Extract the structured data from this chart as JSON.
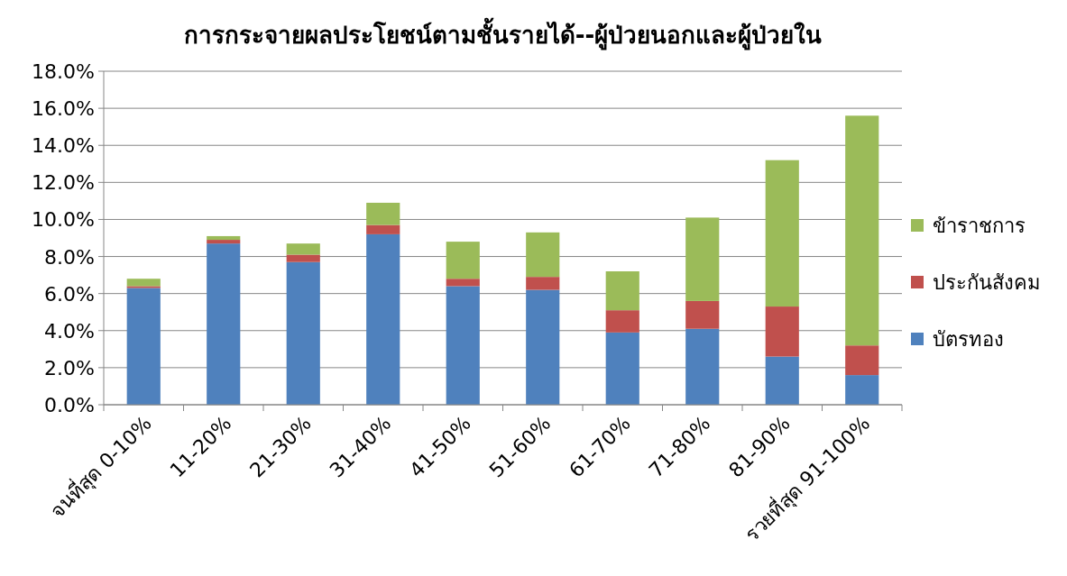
{
  "chart_data": {
    "type": "bar",
    "stacked": true,
    "title": "การกระจายผลประโยชน์ตามชั้นรายได้--ผู้ป่วยนอกและผู้ป่วยใน",
    "categories": [
      "จนที่สุด 0-10%",
      "11-20%",
      "21-30%",
      "31-40%",
      "41-50%",
      "51-60%",
      "61-70%",
      "71-80%",
      "81-90%",
      "รวยที่สุด 91-100%"
    ],
    "series": [
      {
        "name": "บัตรทอง",
        "color": "#4f81bd",
        "values": [
          6.3,
          8.7,
          7.7,
          9.2,
          6.4,
          6.2,
          3.9,
          4.1,
          2.6,
          1.6
        ]
      },
      {
        "name": "ประกันสังคม",
        "color": "#c0504d",
        "values": [
          0.1,
          0.2,
          0.4,
          0.5,
          0.4,
          0.7,
          1.2,
          1.5,
          2.7,
          1.6
        ]
      },
      {
        "name": "ข้าราชการ",
        "color": "#9bbb59",
        "values": [
          0.4,
          0.2,
          0.6,
          1.2,
          2.0,
          2.4,
          2.1,
          4.5,
          7.9,
          12.4
        ]
      }
    ],
    "ylim": [
      0,
      18
    ],
    "yticks": [
      {
        "value": 0,
        "label": "0.0%"
      },
      {
        "value": 2,
        "label": "2.0%"
      },
      {
        "value": 4,
        "label": "4.0%"
      },
      {
        "value": 6,
        "label": "6.0%"
      },
      {
        "value": 8,
        "label": "8.0%"
      },
      {
        "value": 10,
        "label": "10.0%"
      },
      {
        "value": 12,
        "label": "12.0%"
      },
      {
        "value": 14,
        "label": "14.0%"
      },
      {
        "value": 16,
        "label": "16.0%"
      },
      {
        "value": 18,
        "label": "18.0%"
      }
    ],
    "grid": "y",
    "legend": "right"
  }
}
